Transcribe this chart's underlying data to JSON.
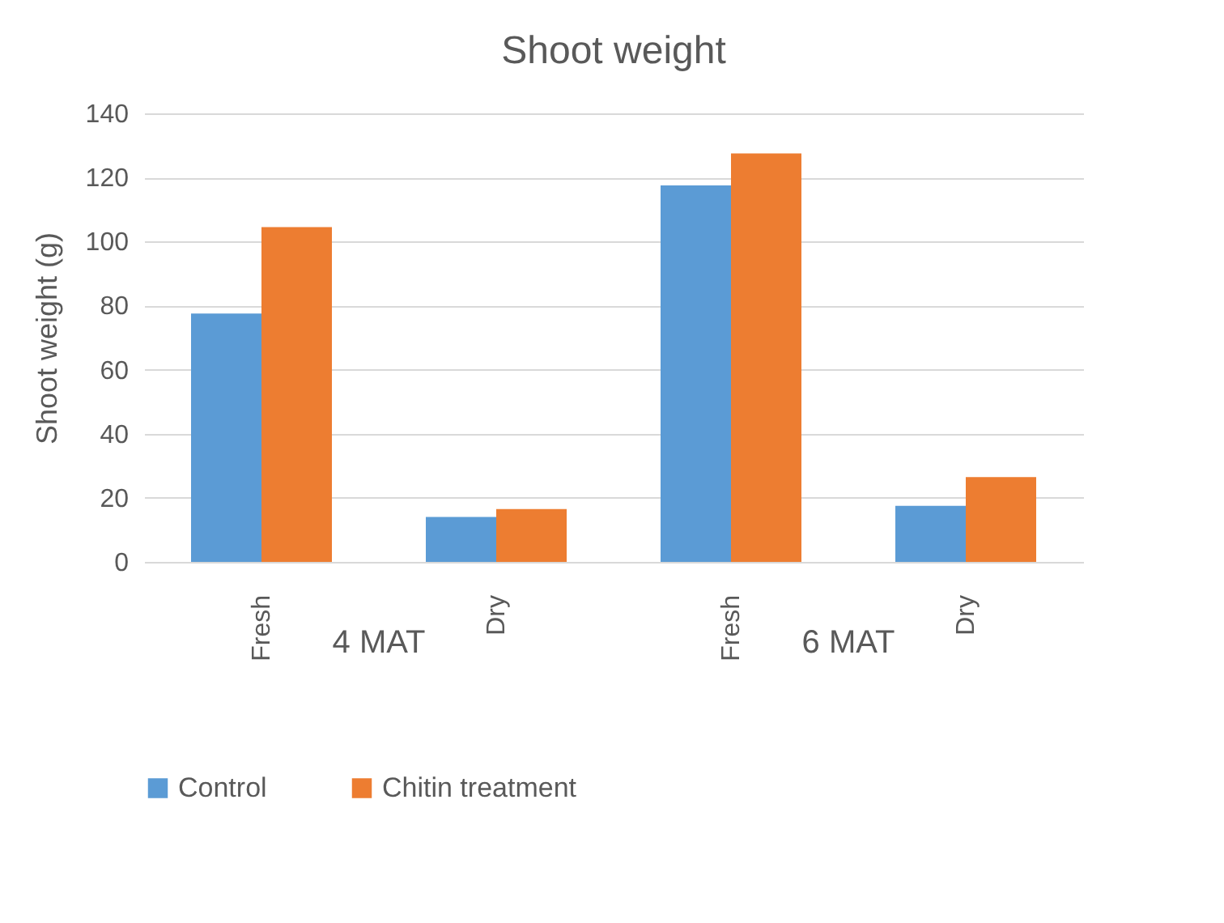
{
  "chart_data": {
    "type": "bar",
    "title": "Shoot weight",
    "ylabel": "Shoot weight (g)",
    "categories": [
      "Fresh",
      "Dry",
      "Fresh",
      "Dry"
    ],
    "series": [
      {
        "name": "Control",
        "color": "#5b9bd5",
        "values": [
          77.5,
          14,
          117.5,
          17.5
        ]
      },
      {
        "name": "Chitin treatment",
        "color": "#ed7d31",
        "values": [
          104.5,
          16.5,
          127.5,
          26.5
        ]
      }
    ],
    "annotations": [
      "4 MAT",
      "6 MAT"
    ],
    "ylim": [
      0,
      140
    ],
    "yticks": [
      0,
      20,
      40,
      60,
      80,
      100,
      120,
      140
    ],
    "grid": "y",
    "legend": "bottom"
  }
}
